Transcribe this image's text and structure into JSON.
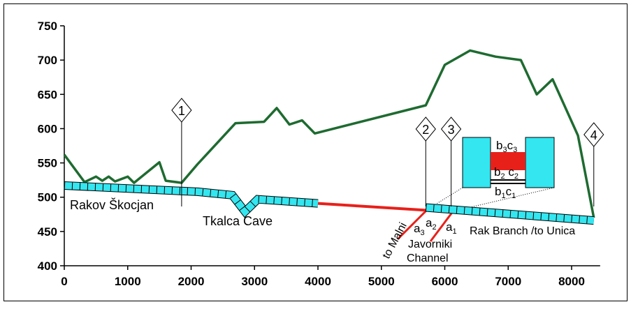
{
  "chart_data": {
    "type": "line",
    "xlim": [
      0,
      8450
    ],
    "ylim": [
      400,
      750
    ],
    "xticks": [
      0,
      1000,
      2000,
      3000,
      4000,
      5000,
      6000,
      7000,
      8000
    ],
    "yticks": [
      400,
      450,
      500,
      550,
      600,
      650,
      700,
      750
    ],
    "series": [
      {
        "color": "#1e6b30",
        "x": [
          0,
          320,
          500,
          600,
          700,
          800,
          1000,
          1100,
          1500,
          1600,
          1850,
          2100,
          2300,
          2700,
          3150,
          3350,
          3550,
          3750,
          3950,
          5700,
          6000,
          6400,
          6800,
          7200,
          7450,
          7700,
          8100,
          8350
        ],
        "values": [
          562,
          522,
          530,
          524,
          530,
          523,
          530,
          521,
          551,
          524,
          521,
          548,
          568,
          608,
          610,
          630,
          606,
          612,
          593,
          634,
          693,
          714,
          705,
          700,
          650,
          672,
          590,
          470
        ]
      },
      {
        "color": "#33e6f0",
        "x": [
          0,
          2100,
          2650,
          2850,
          3050,
          4000
        ],
        "values": [
          517,
          508,
          503,
          479,
          497,
          491
        ]
      },
      {
        "color": "#e8201a",
        "x": [
          4000,
          5700
        ],
        "values": [
          491,
          481
        ]
      },
      {
        "color": "#33e6f0",
        "x": [
          5700,
          8350
        ],
        "values": [
          485,
          466
        ]
      }
    ],
    "markers": [
      {
        "label": "1",
        "x": 1850
      },
      {
        "label": "2",
        "x": 5700
      },
      {
        "label": "3",
        "x": 6100
      },
      {
        "label": "4",
        "x": 8350
      }
    ],
    "annotations": {
      "rakov": "Rakov Škocjan",
      "tkalca": "Tkalca Cave",
      "rak_branch": "Rak Branch /to Unica",
      "malni": "to Malni",
      "javorniki": [
        "Javorniki",
        "Channel"
      ],
      "a3": [
        "a",
        "3"
      ],
      "a2": [
        "a",
        "2"
      ],
      "a1": [
        "a",
        "1"
      ],
      "b3c3": [
        "b",
        "3",
        "c",
        "3"
      ],
      "b2c2": [
        "b",
        "2",
        " c",
        "2"
      ],
      "b1c1": [
        "b",
        "1",
        "c",
        "1"
      ]
    }
  }
}
